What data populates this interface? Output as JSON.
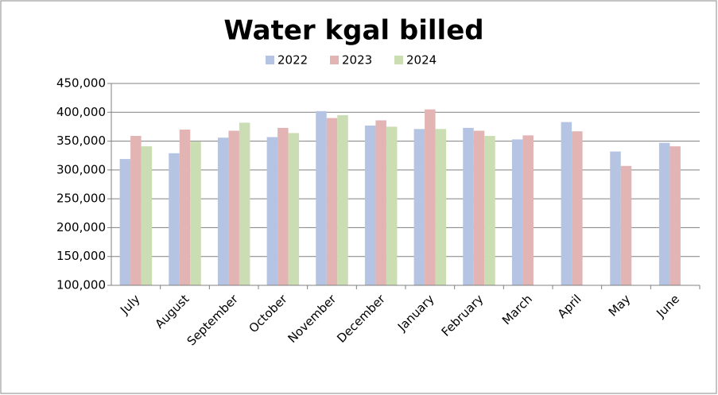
{
  "chart_data": {
    "type": "bar",
    "title": "Water kgal billed",
    "categories": [
      "July",
      "August",
      "September",
      "October",
      "November",
      "December",
      "January",
      "February",
      "March",
      "April",
      "May",
      "June"
    ],
    "series": [
      {
        "name": "2022",
        "color": "#b4c4e2",
        "values": [
          319000,
          329000,
          356000,
          357000,
          402000,
          377000,
          371000,
          373000,
          353000,
          383000,
          332000,
          347000
        ]
      },
      {
        "name": "2023",
        "color": "#e2b4b4",
        "values": [
          359000,
          370000,
          368000,
          373000,
          390000,
          386000,
          405000,
          368000,
          360000,
          367000,
          307000,
          341000
        ]
      },
      {
        "name": "2024",
        "color": "#cbddb3",
        "values": [
          341000,
          349000,
          382000,
          364000,
          395000,
          375000,
          371000,
          359000,
          null,
          null,
          null,
          null
        ]
      }
    ],
    "ylim": [
      100000,
      450000
    ],
    "yticks": [
      {
        "value": 100000,
        "label": "100,000"
      },
      {
        "value": 150000,
        "label": "150,000"
      },
      {
        "value": 200000,
        "label": "200,000"
      },
      {
        "value": 250000,
        "label": "250,000"
      },
      {
        "value": 300000,
        "label": "300,000"
      },
      {
        "value": 350000,
        "label": "350,000"
      },
      {
        "value": 400000,
        "label": "400,000"
      },
      {
        "value": 450000,
        "label": "450,000"
      }
    ],
    "grid": true,
    "legend": "top"
  }
}
